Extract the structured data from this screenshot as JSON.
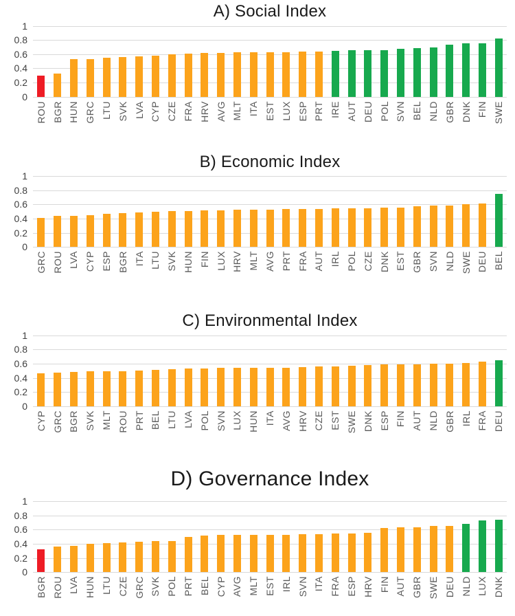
{
  "figure": {
    "background": "#FFFFFF",
    "y_axis_ticks": [
      "1",
      "0.8",
      "0.6",
      "0.4",
      "0.2",
      "0"
    ]
  },
  "palette": {
    "orange": "#FCA31B",
    "red": "#EE1C25",
    "green": "#17A94E",
    "gridline": "#D9D9D9",
    "axis_tick_text": "#3F3F3F",
    "category_text": "#595959",
    "title_text": "#1A1A1A"
  },
  "chart_data": [
    {
      "id": "A",
      "type": "bar",
      "title": "A) Social Index",
      "xlabel": "",
      "ylabel": "",
      "ylim": [
        0,
        1
      ],
      "yticks": [
        0,
        0.2,
        0.4,
        0.6,
        0.8,
        1
      ],
      "grid": true,
      "legend": false,
      "categories": [
        "ROU",
        "BGR",
        "HUN",
        "GRC",
        "LTU",
        "SVK",
        "LVA",
        "CYP",
        "CZE",
        "FRA",
        "HRV",
        "AVG",
        "MLT",
        "ITA",
        "EST",
        "LUX",
        "ESP",
        "PRT",
        "IRE",
        "AUT",
        "DEU",
        "POL",
        "SVN",
        "BEL",
        "NLD",
        "GBR",
        "DNK",
        "FIN",
        "SWE"
      ],
      "values": [
        0.3,
        0.33,
        0.53,
        0.53,
        0.55,
        0.56,
        0.57,
        0.58,
        0.6,
        0.61,
        0.62,
        0.62,
        0.63,
        0.63,
        0.63,
        0.63,
        0.64,
        0.64,
        0.65,
        0.66,
        0.66,
        0.66,
        0.68,
        0.69,
        0.7,
        0.73,
        0.75,
        0.75,
        0.82
      ],
      "colors": [
        "red",
        "orange",
        "orange",
        "orange",
        "orange",
        "orange",
        "orange",
        "orange",
        "orange",
        "orange",
        "orange",
        "orange",
        "orange",
        "orange",
        "orange",
        "orange",
        "orange",
        "orange",
        "green",
        "green",
        "green",
        "green",
        "green",
        "green",
        "green",
        "green",
        "green",
        "green",
        "green"
      ]
    },
    {
      "id": "B",
      "type": "bar",
      "title": "B) Economic Index",
      "xlabel": "",
      "ylabel": "",
      "ylim": [
        0,
        1
      ],
      "yticks": [
        0,
        0.2,
        0.4,
        0.6,
        0.8,
        1
      ],
      "grid": true,
      "legend": false,
      "categories": [
        "GRC",
        "ROU",
        "LVA",
        "CYP",
        "ESP",
        "BGR",
        "ITA",
        "LTU",
        "SVK",
        "HUN",
        "FIN",
        "LUX",
        "HRV",
        "MLT",
        "AVG",
        "PRT",
        "FRA",
        "AUT",
        "IRL",
        "POL",
        "CZE",
        "DNK",
        "EST",
        "GBR",
        "SVN",
        "NLD",
        "SWE",
        "DEU",
        "BEL"
      ],
      "values": [
        0.41,
        0.44,
        0.44,
        0.45,
        0.47,
        0.48,
        0.49,
        0.5,
        0.51,
        0.51,
        0.52,
        0.52,
        0.53,
        0.53,
        0.53,
        0.54,
        0.54,
        0.54,
        0.55,
        0.55,
        0.55,
        0.56,
        0.56,
        0.57,
        0.58,
        0.58,
        0.6,
        0.61,
        0.75
      ],
      "colors": [
        "orange",
        "orange",
        "orange",
        "orange",
        "orange",
        "orange",
        "orange",
        "orange",
        "orange",
        "orange",
        "orange",
        "orange",
        "orange",
        "orange",
        "orange",
        "orange",
        "orange",
        "orange",
        "orange",
        "orange",
        "orange",
        "orange",
        "orange",
        "orange",
        "orange",
        "orange",
        "orange",
        "orange",
        "green"
      ]
    },
    {
      "id": "C",
      "type": "bar",
      "title": "C) Environmental Index",
      "xlabel": "",
      "ylabel": "",
      "ylim": [
        0,
        1
      ],
      "yticks": [
        0,
        0.2,
        0.4,
        0.6,
        0.8,
        1
      ],
      "grid": true,
      "legend": false,
      "categories": [
        "CYP",
        "GRC",
        "BGR",
        "SVK",
        "MLT",
        "ROU",
        "PRT",
        "BEL",
        "LTU",
        "LVA",
        "POL",
        "SVN",
        "LUX",
        "HUN",
        "ITA",
        "AVG",
        "HRV",
        "CZE",
        "EST",
        "SWE",
        "DNK",
        "ESP",
        "FIN",
        "AUT",
        "NLD",
        "GBR",
        "IRL",
        "FRA",
        "DEU"
      ],
      "values": [
        0.46,
        0.47,
        0.48,
        0.49,
        0.49,
        0.49,
        0.5,
        0.51,
        0.52,
        0.53,
        0.53,
        0.54,
        0.54,
        0.54,
        0.54,
        0.54,
        0.55,
        0.56,
        0.56,
        0.57,
        0.58,
        0.59,
        0.59,
        0.59,
        0.6,
        0.6,
        0.61,
        0.63,
        0.65
      ],
      "colors": [
        "orange",
        "orange",
        "orange",
        "orange",
        "orange",
        "orange",
        "orange",
        "orange",
        "orange",
        "orange",
        "orange",
        "orange",
        "orange",
        "orange",
        "orange",
        "orange",
        "orange",
        "orange",
        "orange",
        "orange",
        "orange",
        "orange",
        "orange",
        "orange",
        "orange",
        "orange",
        "orange",
        "orange",
        "green"
      ]
    },
    {
      "id": "D",
      "type": "bar",
      "title": "D) Governance Index",
      "xlabel": "",
      "ylabel": "",
      "ylim": [
        0,
        1
      ],
      "yticks": [
        0,
        0.2,
        0.4,
        0.6,
        0.8,
        1
      ],
      "grid": true,
      "legend": false,
      "categories": [
        "BGR",
        "ROU",
        "LVA",
        "HUN",
        "LTU",
        "CZE",
        "GRC",
        "SVK",
        "POL",
        "PRT",
        "BEL",
        "CYP",
        "AVG",
        "MLT",
        "EST",
        "IRL",
        "SVN",
        "ITA",
        "FRA",
        "ESP",
        "HRV",
        "FIN",
        "AUT",
        "GBR",
        "SWE",
        "DEU",
        "NLD",
        "LUX",
        "DNK"
      ],
      "values": [
        0.32,
        0.36,
        0.37,
        0.4,
        0.41,
        0.42,
        0.43,
        0.44,
        0.44,
        0.5,
        0.52,
        0.53,
        0.53,
        0.53,
        0.53,
        0.53,
        0.54,
        0.54,
        0.55,
        0.55,
        0.56,
        0.62,
        0.63,
        0.63,
        0.65,
        0.65,
        0.68,
        0.73,
        0.74
      ],
      "colors": [
        "red",
        "orange",
        "orange",
        "orange",
        "orange",
        "orange",
        "orange",
        "orange",
        "orange",
        "orange",
        "orange",
        "orange",
        "orange",
        "orange",
        "orange",
        "orange",
        "orange",
        "orange",
        "orange",
        "orange",
        "orange",
        "orange",
        "orange",
        "orange",
        "orange",
        "orange",
        "green",
        "green",
        "green"
      ]
    }
  ]
}
